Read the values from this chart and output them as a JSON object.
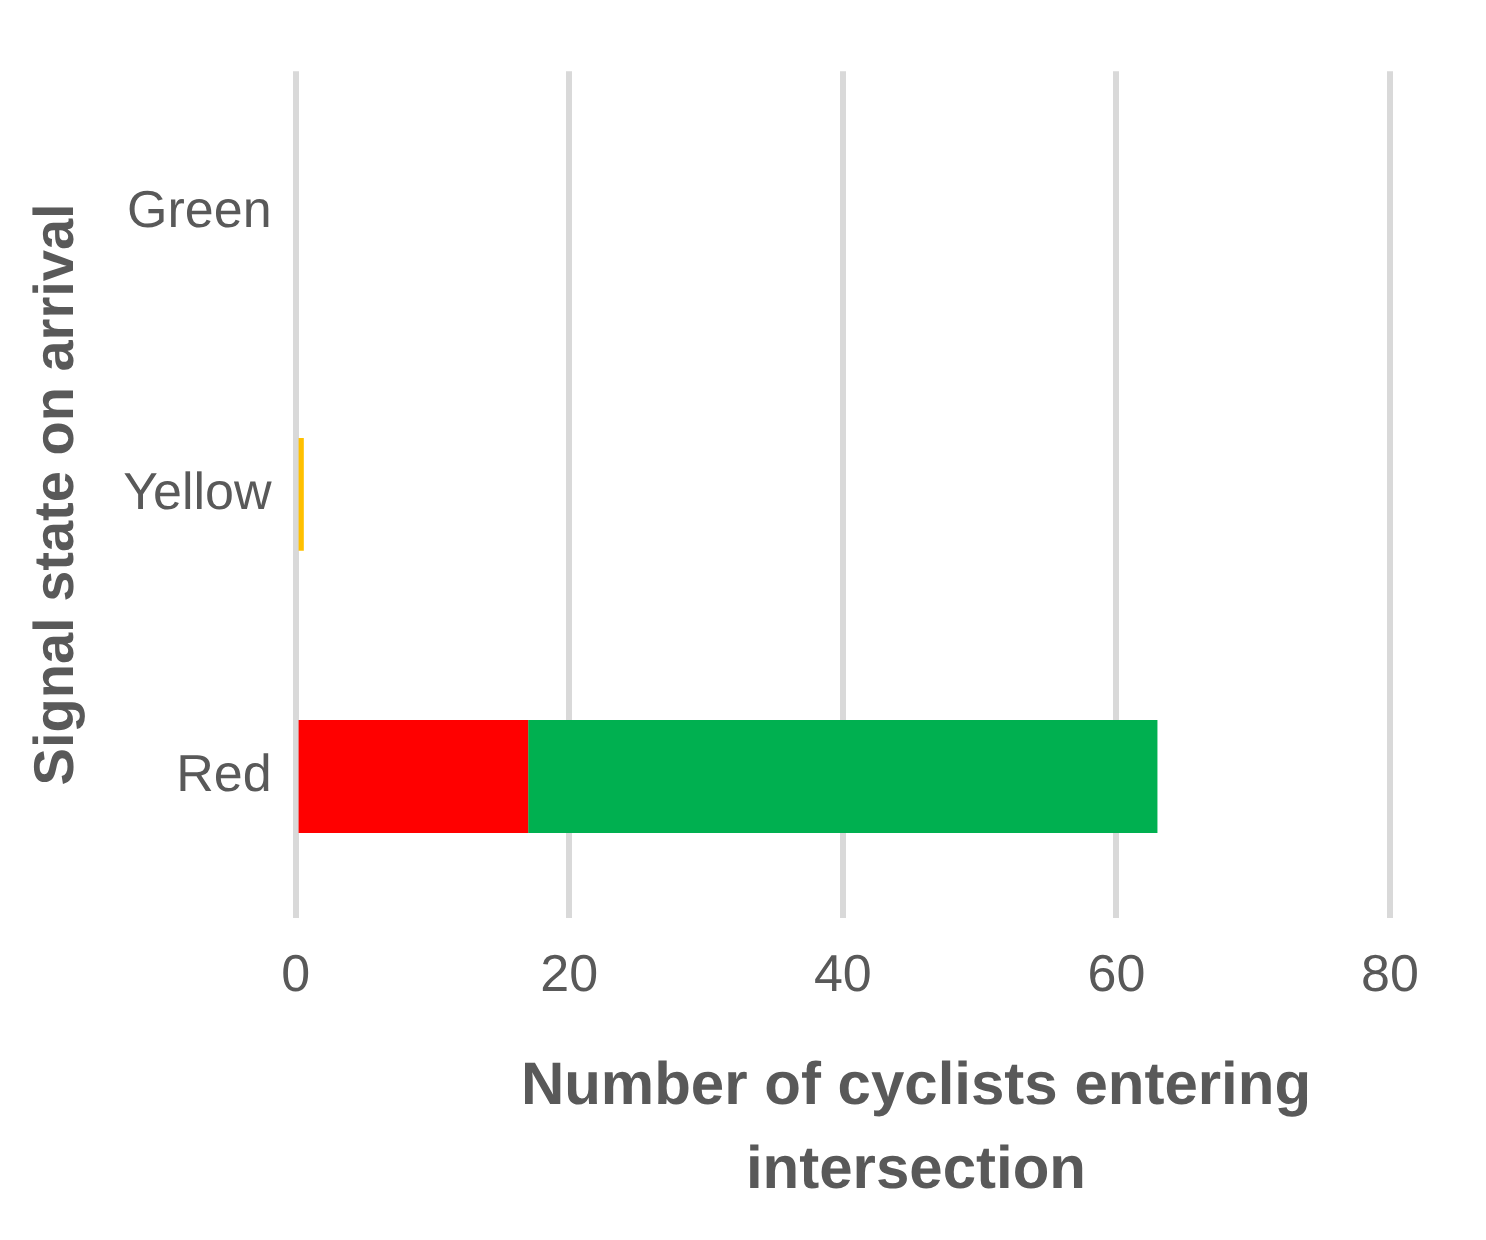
{
  "chart_data": {
    "type": "bar",
    "orientation": "horizontal",
    "stacked": true,
    "xlabel": "Number of cyclists entering intersection",
    "ylabel": "Signal state on arrival",
    "categories": [
      "Green",
      "Yellow",
      "Red"
    ],
    "series": [
      {
        "color": "#ffc000",
        "values": [
          null,
          0.6,
          null
        ]
      },
      {
        "color": "#ff0000",
        "values": [
          null,
          null,
          17
        ]
      },
      {
        "color": "#00b050",
        "values": [
          null,
          null,
          46
        ]
      }
    ],
    "xlim": [
      0,
      80
    ],
    "xticks": [
      0,
      20,
      40,
      60,
      80
    ],
    "grid": "x",
    "legend": false
  }
}
